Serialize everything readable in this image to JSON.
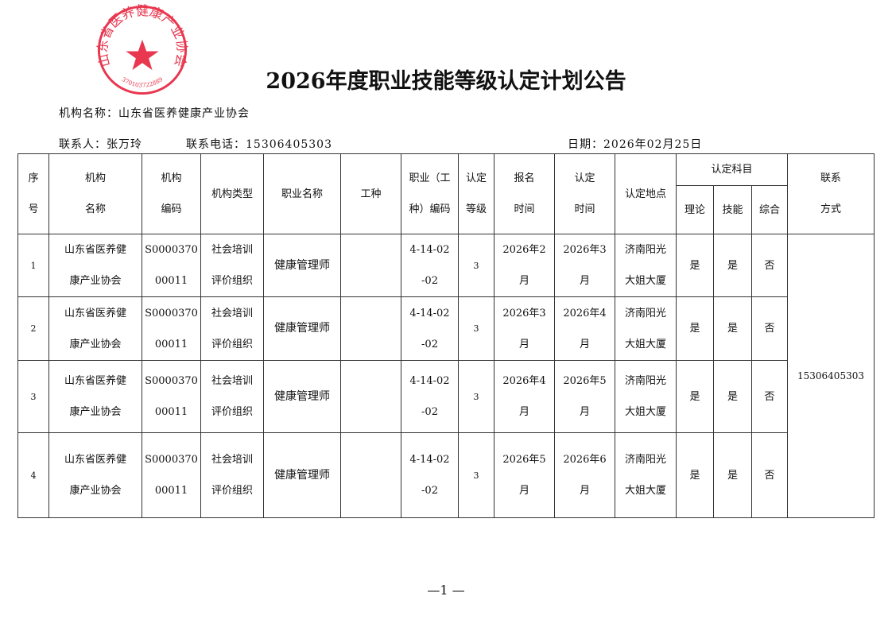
{
  "title": "2026年度职业技能等级认定计划公告",
  "org_line": "机构名称：山东省医养健康产业协会",
  "contact_line": "联系人：张万玲",
  "phone_line": "联系电话：15306405303",
  "date_line": "日期：2026年02月25日",
  "stamp": {
    "text": "山东省医养健康产业协会",
    "code": "370103722889",
    "color": "#e8374f"
  },
  "headers": {
    "seq": [
      "序",
      "号"
    ],
    "org": [
      "机构",
      "名称"
    ],
    "code": [
      "机构",
      "编码"
    ],
    "type": "机构类型",
    "job": "职业名称",
    "work": "工种",
    "jobcode": [
      "职业（工",
      "种）编码"
    ],
    "level": [
      "认定",
      "等级"
    ],
    "signup": [
      "报名",
      "时间"
    ],
    "cert": [
      "认定",
      "时间"
    ],
    "place": "认定地点",
    "subjects": "认定科目",
    "theory": "理论",
    "skill": "技能",
    "general": "综合",
    "contact": [
      "联系",
      "方式"
    ]
  },
  "contact_value": "15306405303",
  "rows": [
    {
      "seq": "1",
      "org": [
        "山东省医养健",
        "康产业协会"
      ],
      "code": [
        "S0000370",
        "00011"
      ],
      "type": [
        "社会培训",
        "评价组织"
      ],
      "job": "健康管理师",
      "work": "",
      "jobcode": [
        "4-14-02",
        "-02"
      ],
      "level": "3",
      "signup": [
        "2026年2",
        "月"
      ],
      "cert": [
        "2026年3",
        "月"
      ],
      "place": [
        "济南阳光",
        "大姐大厦"
      ],
      "theory": "是",
      "skill": "是",
      "general": "否"
    },
    {
      "seq": "2",
      "org": [
        "山东省医养健",
        "康产业协会"
      ],
      "code": [
        "S0000370",
        "00011"
      ],
      "type": [
        "社会培训",
        "评价组织"
      ],
      "job": "健康管理师",
      "work": "",
      "jobcode": [
        "4-14-02",
        "-02"
      ],
      "level": "3",
      "signup": [
        "2026年3",
        "月"
      ],
      "cert": [
        "2026年4",
        "月"
      ],
      "place": [
        "济南阳光",
        "大姐大厦"
      ],
      "theory": "是",
      "skill": "是",
      "general": "否"
    },
    {
      "seq": "3",
      "org": [
        "山东省医养健",
        "康产业协会"
      ],
      "code": [
        "S0000370",
        "00011"
      ],
      "type": [
        "社会培训",
        "评价组织"
      ],
      "job": "健康管理师",
      "work": "",
      "jobcode": [
        "4-14-02",
        "-02"
      ],
      "level": "3",
      "signup": [
        "2026年4",
        "月"
      ],
      "cert": [
        "2026年5",
        "月"
      ],
      "place": [
        "济南阳光",
        "大姐大厦"
      ],
      "theory": "是",
      "skill": "是",
      "general": "否"
    },
    {
      "seq": "4",
      "org": [
        "山东省医养健",
        "康产业协会"
      ],
      "code": [
        "S0000370",
        "00011"
      ],
      "type": [
        "社会培训",
        "评价组织"
      ],
      "job": "健康管理师",
      "work": "",
      "jobcode": [
        "4-14-02",
        "-02"
      ],
      "level": "3",
      "signup": [
        "2026年5",
        "月"
      ],
      "cert": [
        "2026年6",
        "月"
      ],
      "place": [
        "济南阳光",
        "大姐大厦"
      ],
      "theory": "是",
      "skill": "是",
      "general": "否"
    }
  ],
  "page_number": "—1 —"
}
